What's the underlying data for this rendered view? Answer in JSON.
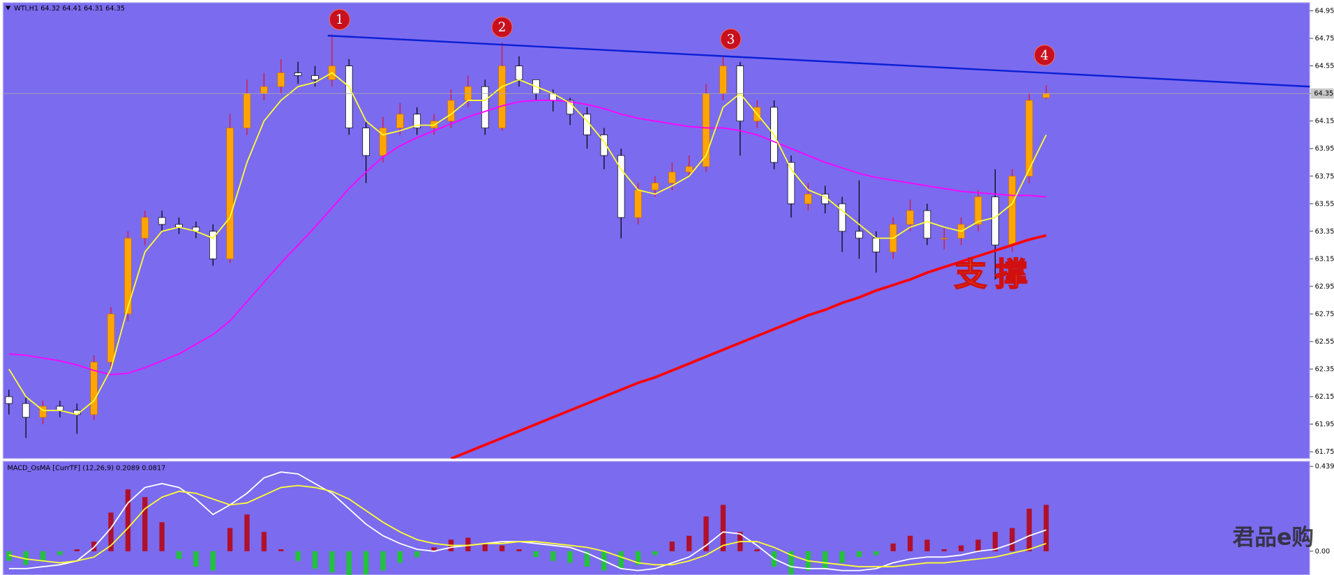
{
  "chart_data": [
    {
      "type": "candlestick",
      "title": "WTI,H1 64.32 64.41 64.31 64.35",
      "open": [
        62.15,
        62.1,
        62.0,
        62.08,
        62.05,
        62.02,
        62.4,
        62.75,
        63.3,
        63.45,
        63.4,
        63.38,
        63.35,
        63.15,
        64.1,
        64.35,
        64.4,
        64.5,
        64.48,
        64.45,
        64.55,
        64.1,
        63.9,
        64.1,
        64.2,
        64.1,
        64.15,
        64.3,
        64.4,
        64.1,
        64.55,
        64.45,
        64.35,
        64.3,
        64.2,
        64.05,
        63.9,
        63.45,
        63.65,
        63.7,
        63.78,
        63.82,
        64.35,
        64.55,
        64.15,
        64.25,
        63.85,
        63.55,
        63.62,
        63.55,
        63.35,
        63.3,
        63.2,
        63.4,
        63.5,
        63.3,
        63.3,
        63.4,
        63.6,
        63.25,
        63.75,
        64.32
      ],
      "high": [
        62.2,
        62.15,
        62.12,
        62.12,
        62.1,
        62.45,
        62.8,
        63.35,
        63.5,
        63.5,
        63.45,
        63.42,
        63.4,
        64.2,
        64.45,
        64.5,
        64.6,
        64.58,
        64.55,
        64.78,
        64.6,
        64.15,
        64.18,
        64.28,
        64.25,
        64.2,
        64.38,
        64.48,
        64.45,
        64.72,
        64.62,
        64.45,
        64.38,
        64.32,
        64.25,
        64.1,
        63.95,
        63.7,
        63.75,
        63.85,
        63.9,
        64.42,
        64.62,
        64.58,
        64.3,
        64.3,
        63.9,
        63.7,
        63.68,
        63.6,
        63.72,
        63.35,
        63.45,
        63.58,
        63.55,
        63.38,
        63.45,
        63.65,
        63.8,
        63.8,
        64.35,
        64.41
      ],
      "low": [
        62.02,
        61.85,
        61.95,
        62.0,
        61.88,
        61.98,
        62.35,
        62.7,
        63.25,
        63.35,
        63.33,
        63.3,
        63.1,
        63.12,
        64.05,
        64.3,
        64.35,
        64.42,
        64.4,
        64.4,
        64.05,
        63.7,
        63.85,
        64.05,
        64.05,
        64.05,
        64.1,
        64.25,
        64.05,
        64.08,
        64.4,
        64.3,
        64.22,
        64.12,
        63.95,
        63.8,
        63.3,
        63.4,
        63.6,
        63.65,
        63.75,
        63.78,
        64.3,
        63.9,
        64.1,
        63.8,
        63.45,
        63.5,
        63.48,
        63.2,
        63.15,
        63.05,
        63.15,
        63.35,
        63.25,
        63.22,
        63.25,
        63.35,
        63.0,
        63.2,
        63.7,
        64.31
      ],
      "close": [
        62.1,
        62.0,
        62.08,
        62.05,
        62.02,
        62.4,
        62.75,
        63.3,
        63.45,
        63.4,
        63.38,
        63.35,
        63.15,
        64.1,
        64.35,
        64.4,
        64.5,
        64.48,
        64.45,
        64.55,
        64.1,
        63.9,
        64.1,
        64.2,
        64.1,
        64.15,
        64.3,
        64.4,
        64.1,
        64.55,
        64.45,
        64.35,
        64.3,
        64.2,
        64.05,
        63.9,
        63.45,
        63.65,
        63.7,
        63.78,
        63.82,
        64.35,
        64.55,
        64.15,
        64.25,
        63.85,
        63.55,
        63.62,
        63.55,
        63.35,
        63.3,
        63.2,
        63.4,
        63.5,
        63.3,
        63.3,
        63.4,
        63.6,
        63.25,
        63.75,
        64.3,
        64.35
      ],
      "up_color": "#ffa500",
      "down_color": "#ffffff",
      "lines": [
        {
          "color": "#ff0000",
          "width": 3,
          "values": [
            null,
            null,
            null,
            null,
            null,
            null,
            null,
            null,
            null,
            null,
            null,
            null,
            null,
            null,
            null,
            null,
            null,
            null,
            null,
            null,
            null,
            null,
            null,
            null,
            null,
            null,
            61.7,
            61.75,
            61.8,
            61.85,
            61.9,
            61.95,
            62.0,
            62.05,
            62.1,
            62.15,
            62.2,
            62.25,
            62.29,
            62.34,
            62.39,
            62.44,
            62.49,
            62.54,
            62.59,
            62.64,
            62.69,
            62.74,
            62.78,
            62.83,
            62.87,
            62.92,
            62.96,
            63.0,
            63.05,
            63.09,
            63.13,
            63.17,
            63.21,
            63.25,
            63.29,
            63.32
          ]
        },
        {
          "color": "#ff00ff",
          "width": 1.5,
          "values": [
            62.46,
            62.45,
            62.43,
            62.41,
            62.38,
            62.34,
            62.31,
            62.32,
            62.36,
            62.41,
            62.46,
            62.53,
            62.6,
            62.7,
            62.84,
            62.98,
            63.12,
            63.25,
            63.38,
            63.52,
            63.66,
            63.78,
            63.89,
            63.97,
            64.03,
            64.08,
            64.13,
            64.18,
            64.22,
            64.26,
            64.29,
            64.3,
            64.3,
            64.29,
            64.27,
            64.24,
            64.2,
            64.17,
            64.15,
            64.13,
            64.11,
            64.1,
            64.1,
            64.08,
            64.05,
            64.0,
            63.95,
            63.9,
            63.85,
            63.81,
            63.77,
            63.74,
            63.72,
            63.7,
            63.68,
            63.66,
            63.64,
            63.63,
            63.62,
            63.61,
            63.61,
            63.6
          ]
        },
        {
          "color": "#ffff33",
          "width": 1.5,
          "values": [
            62.35,
            62.15,
            62.05,
            62.05,
            62.02,
            62.12,
            62.35,
            62.8,
            63.2,
            63.35,
            63.38,
            63.35,
            63.3,
            63.45,
            63.85,
            64.15,
            64.3,
            64.4,
            64.43,
            64.5,
            64.4,
            64.15,
            64.05,
            64.08,
            64.12,
            64.12,
            64.2,
            64.3,
            64.3,
            64.4,
            64.45,
            64.4,
            64.35,
            64.28,
            64.15,
            64.0,
            63.8,
            63.65,
            63.62,
            63.68,
            63.75,
            63.9,
            64.25,
            64.35,
            64.2,
            64.05,
            63.8,
            63.65,
            63.6,
            63.5,
            63.4,
            63.3,
            63.3,
            63.38,
            63.42,
            63.38,
            63.35,
            63.42,
            63.45,
            63.55,
            63.8,
            64.05
          ]
        }
      ],
      "trendline": {
        "color": "#0a1fd6",
        "values": [
          64.77,
          64.4
        ]
      },
      "last_price": 64.35,
      "ylim": [
        61.7,
        65.01
      ],
      "yticks": [
        64.95,
        64.75,
        64.55,
        64.35,
        64.15,
        63.95,
        63.75,
        63.55,
        63.35,
        63.15,
        62.95,
        62.75,
        62.55,
        62.35,
        62.15,
        61.95,
        61.75
      ],
      "annotations": {
        "markers": [
          "1",
          "2",
          "3",
          "4"
        ],
        "support": "支撑"
      }
    },
    {
      "type": "bar",
      "title": "MACD_OsMA [CurrTF] (12,26,9) 0.2089 0.0817",
      "values": [
        -0.05,
        -0.07,
        -0.05,
        -0.02,
        0.01,
        0.05,
        0.2,
        0.32,
        0.28,
        0.15,
        -0.04,
        -0.08,
        -0.1,
        0.12,
        0.19,
        0.1,
        0.01,
        -0.05,
        -0.09,
        -0.11,
        -0.13,
        -0.12,
        -0.1,
        -0.06,
        -0.03,
        0.02,
        0.06,
        0.07,
        0.04,
        0.03,
        0.01,
        -0.03,
        -0.05,
        -0.06,
        -0.08,
        -0.1,
        -0.09,
        -0.07,
        -0.02,
        0.05,
        0.08,
        0.18,
        0.24,
        0.1,
        0.01,
        -0.08,
        -0.12,
        -0.1,
        -0.09,
        -0.06,
        -0.03,
        -0.02,
        0.04,
        0.08,
        0.06,
        0.01,
        0.03,
        0.06,
        0.1,
        0.12,
        0.22,
        0.24
      ],
      "up_color": "#b0102a",
      "down_color": "#22c23c",
      "lines": [
        {
          "color": "#ffffff",
          "width": 1.5,
          "values": [
            -0.09,
            -0.09,
            -0.08,
            -0.07,
            -0.05,
            0.02,
            0.12,
            0.25,
            0.33,
            0.35,
            0.33,
            0.27,
            0.19,
            0.24,
            0.3,
            0.38,
            0.41,
            0.4,
            0.35,
            0.3,
            0.22,
            0.14,
            0.08,
            0.04,
            0.01,
            0.0,
            0.02,
            0.03,
            0.04,
            0.05,
            0.05,
            0.04,
            0.03,
            0.02,
            -0.01,
            -0.05,
            -0.09,
            -0.1,
            -0.09,
            -0.06,
            -0.03,
            0.03,
            0.1,
            0.09,
            0.03,
            -0.04,
            -0.08,
            -0.09,
            -0.09,
            -0.1,
            -0.1,
            -0.09,
            -0.06,
            -0.04,
            -0.03,
            -0.03,
            -0.02,
            0.0,
            0.01,
            0.04,
            0.08,
            0.11
          ]
        },
        {
          "color": "#ffff33",
          "width": 1.5,
          "values": [
            -0.02,
            -0.04,
            -0.05,
            -0.06,
            -0.05,
            -0.03,
            0.03,
            0.12,
            0.22,
            0.28,
            0.31,
            0.3,
            0.27,
            0.24,
            0.25,
            0.29,
            0.33,
            0.34,
            0.33,
            0.31,
            0.27,
            0.21,
            0.15,
            0.1,
            0.06,
            0.04,
            0.03,
            0.03,
            0.04,
            0.04,
            0.05,
            0.05,
            0.04,
            0.03,
            0.02,
            0.0,
            -0.03,
            -0.06,
            -0.07,
            -0.07,
            -0.05,
            -0.02,
            0.03,
            0.05,
            0.05,
            0.02,
            -0.02,
            -0.05,
            -0.06,
            -0.07,
            -0.08,
            -0.08,
            -0.08,
            -0.07,
            -0.06,
            -0.06,
            -0.05,
            -0.04,
            -0.03,
            -0.01,
            0.01,
            0.04
          ]
        }
      ],
      "ylim": [
        -0.123,
        0.466
      ],
      "yticks": [
        0.4393,
        {
          "value": 0,
          "label": "0.00"
        }
      ],
      "watermark": "君品e购"
    }
  ]
}
